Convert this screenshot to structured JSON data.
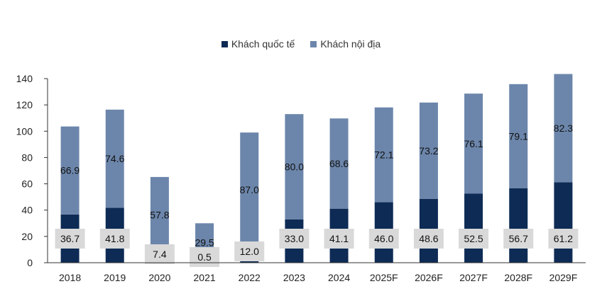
{
  "colors": {
    "international": "#0d2b55",
    "domestic": "#6c86ab",
    "label_box": "#d9d9d9",
    "axis": "#333333"
  },
  "legend": {
    "international_label": "Khách quốc tế",
    "domestic_label": "Khách nội địa"
  },
  "chart_data": {
    "type": "bar",
    "stacked": true,
    "categories": [
      "2018",
      "2019",
      "2020",
      "2021",
      "2022",
      "2023",
      "2024",
      "2025F",
      "2026F",
      "2027F",
      "2028F",
      "2029F"
    ],
    "series": [
      {
        "name": "Khách quốc tế",
        "values": [
          36.7,
          41.8,
          7.4,
          0.5,
          12.0,
          33.0,
          41.1,
          46.0,
          48.6,
          52.5,
          56.7,
          61.2
        ]
      },
      {
        "name": "Khách nội địa",
        "values": [
          66.9,
          74.6,
          57.8,
          29.5,
          87.0,
          80.0,
          68.6,
          72.1,
          73.2,
          76.1,
          79.1,
          82.3
        ]
      }
    ],
    "value_labels": {
      "international": [
        "36.7",
        "41.8",
        "7.4",
        "0.5",
        "12.0",
        "33.0",
        "41.1",
        "46.0",
        "48.6",
        "52.5",
        "56.7",
        "61.2"
      ],
      "domestic": [
        "66.9",
        "74.6",
        "57.8",
        "29.5",
        "87.0",
        "80.0",
        "68.6",
        "72.1",
        "73.2",
        "76.1",
        "79.1",
        "82.3"
      ]
    },
    "yticks": [
      "0",
      "20",
      "40",
      "60",
      "80",
      "100",
      "120",
      "140"
    ],
    "ylim": [
      0,
      140
    ],
    "title": "",
    "xlabel": "",
    "ylabel": "",
    "legend_position": "top-center",
    "grid": false
  }
}
